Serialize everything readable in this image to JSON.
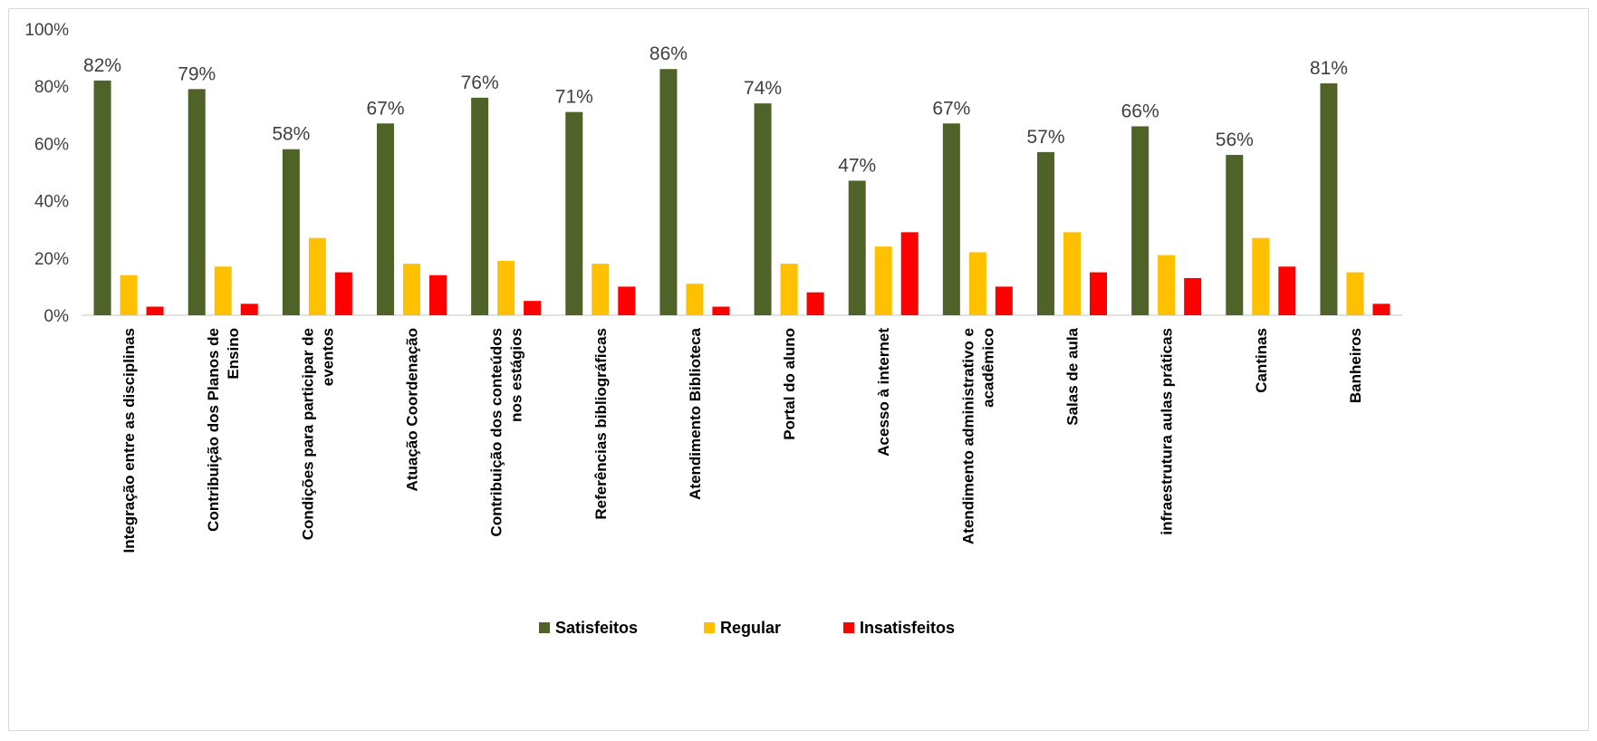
{
  "chart_data": {
    "type": "bar",
    "title": "",
    "xlabel": "",
    "ylabel": "",
    "ylim": [
      0,
      100
    ],
    "yticks": [
      "0%",
      "20%",
      "40%",
      "60%",
      "80%",
      "100%"
    ],
    "grid": false,
    "legend_position": "bottom",
    "categories": [
      [
        "Integração entre as disciplinas"
      ],
      [
        "Contribuição dos Planos de",
        "Ensino"
      ],
      [
        "Condições para  participar de",
        "eventos"
      ],
      [
        "Atuação Coordenação"
      ],
      [
        "Contribuição dos conteúdos",
        "nos estágios"
      ],
      [
        "Referências bibliográficas"
      ],
      [
        "Atendimento Biblioteca"
      ],
      [
        "Portal do aluno"
      ],
      [
        "Acesso à internet"
      ],
      [
        "Atendimento administrativo e",
        "acadêmico"
      ],
      [
        "Salas de aula"
      ],
      [
        "infraestrutura aulas práticas"
      ],
      [
        "Cantinas"
      ],
      [
        "Banheiros"
      ]
    ],
    "series": [
      {
        "name": "Satisfeitos",
        "color": "#4f6228",
        "values": [
          82,
          79,
          58,
          67,
          76,
          71,
          86,
          74,
          47,
          67,
          57,
          66,
          56,
          81
        ],
        "data_labels": [
          "82%",
          "79%",
          "58%",
          "67%",
          "76%",
          "71%",
          "86%",
          "74%",
          "47%",
          "67%",
          "57%",
          "66%",
          "56%",
          "81%"
        ]
      },
      {
        "name": "Regular",
        "color": "#ffc000",
        "values": [
          14,
          17,
          27,
          18,
          19,
          18,
          11,
          18,
          24,
          22,
          29,
          21,
          27,
          15
        ]
      },
      {
        "name": "Insatisfeitos",
        "color": "#ff0000",
        "values": [
          3,
          4,
          15,
          14,
          5,
          10,
          3,
          8,
          29,
          10,
          15,
          13,
          17,
          4
        ]
      }
    ]
  }
}
